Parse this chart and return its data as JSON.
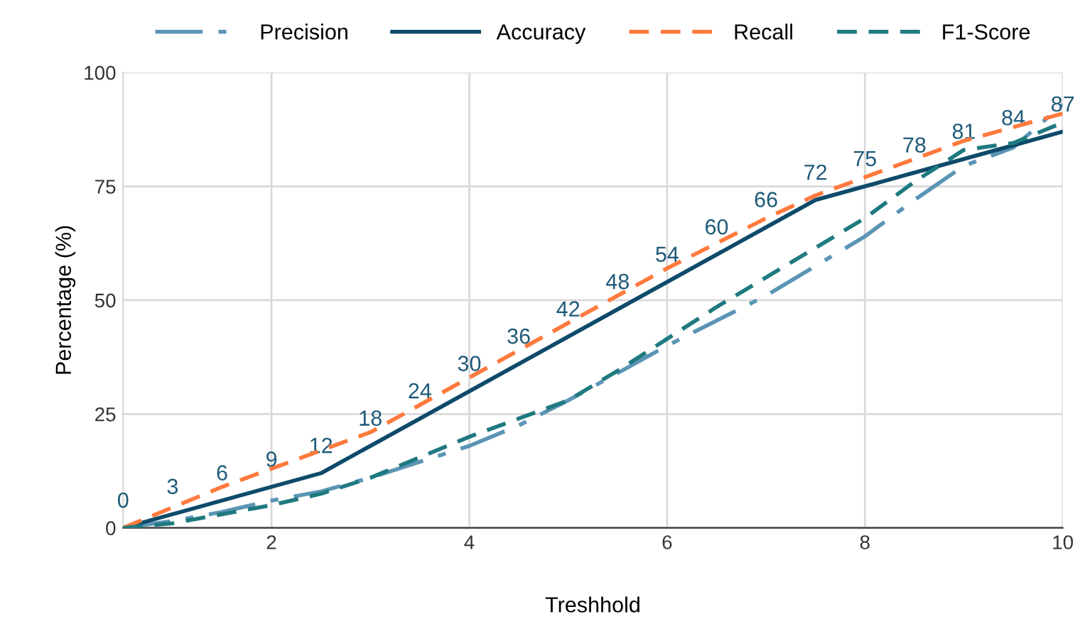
{
  "chart_data": {
    "type": "line",
    "xlabel": "Treshhold",
    "ylabel": "Percentage (%)",
    "x": [
      0.5,
      1,
      1.5,
      2,
      2.5,
      3,
      3.5,
      4,
      4.5,
      5,
      5.5,
      6,
      6.5,
      7,
      7.5,
      8,
      8.5,
      9,
      9.5,
      10
    ],
    "series": [
      {
        "name": "Precision",
        "color": "#5b95b5",
        "line_style": "dashdot",
        "values": [
          0,
          1.5,
          3.5,
          6,
          8,
          11,
          14.5,
          18,
          22.5,
          28,
          34,
          40,
          45.5,
          51,
          57.5,
          64,
          72,
          79.5,
          83.5,
          93
        ]
      },
      {
        "name": "Accuracy",
        "color": "#0e4a6a",
        "line_style": "solid",
        "data_labels": true,
        "values": [
          0,
          3,
          6,
          9,
          12,
          18,
          24,
          30,
          36,
          42,
          48,
          54,
          60,
          66,
          72,
          75,
          78,
          81,
          84,
          87
        ]
      },
      {
        "name": "Recall",
        "color": "#ff7a3d",
        "line_style": "dashed",
        "values": [
          0,
          4.5,
          9,
          13,
          17,
          21,
          27,
          33,
          39,
          45,
          51,
          57,
          62.5,
          68,
          73,
          77,
          81,
          85,
          88,
          91
        ]
      },
      {
        "name": "F1-Score",
        "color": "#1f7a80",
        "line_style": "dashed",
        "values": [
          0,
          1,
          3,
          5,
          7.5,
          11,
          15.5,
          20,
          24,
          28,
          34.5,
          41.5,
          48.5,
          55,
          61.5,
          68,
          76,
          83,
          84.5,
          89
        ]
      }
    ],
    "xlim": [
      0.5,
      10
    ],
    "xticks": [
      2,
      4,
      6,
      8,
      10
    ],
    "ylim": [
      0,
      100
    ],
    "yticks": [
      0,
      25,
      50,
      75,
      100
    ],
    "grid": true,
    "legend": "top",
    "marker": "none"
  }
}
